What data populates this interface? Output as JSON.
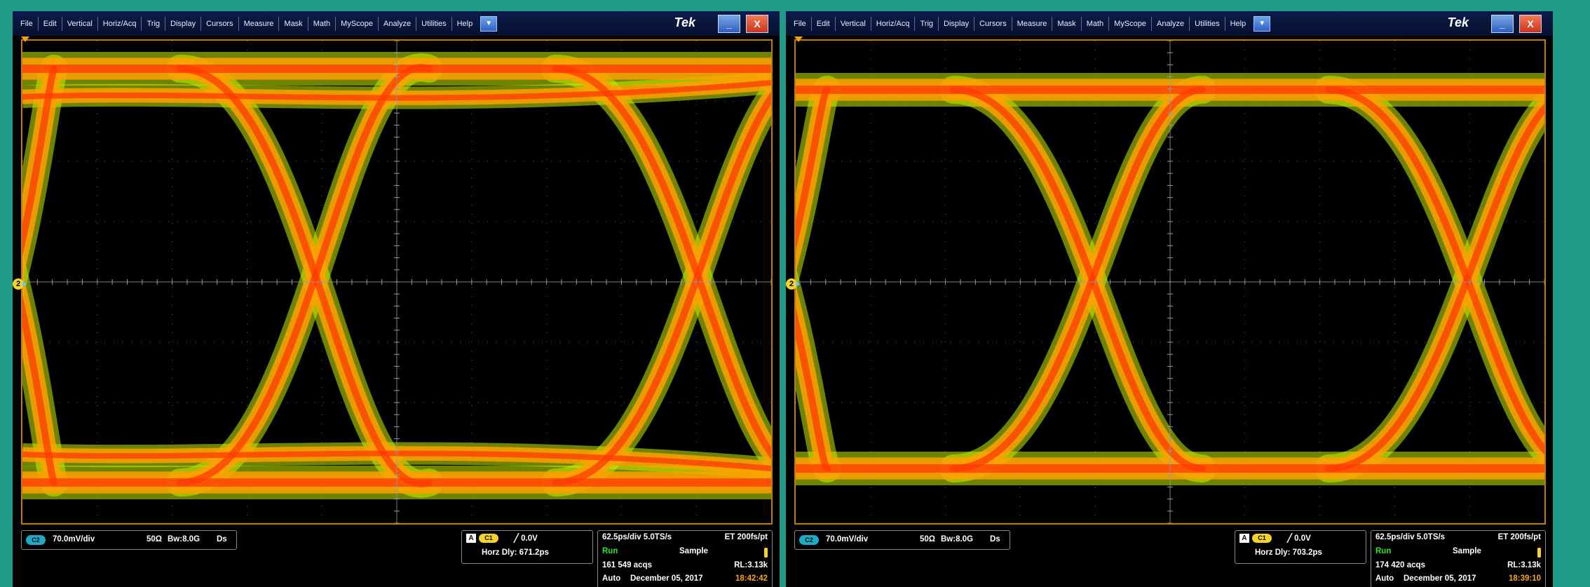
{
  "menu": {
    "items": [
      "File",
      "Edit",
      "Vertical",
      "Horiz/Acq",
      "Trig",
      "Display",
      "Cursors",
      "Measure",
      "Mask",
      "Math",
      "MyScope",
      "Analyze",
      "Utilities",
      "Help"
    ],
    "dropdown_icon": "chevron-down-icon",
    "brand": "Tek",
    "minimize_label": "_",
    "close_label": "X"
  },
  "colors": {
    "background": "#1f9b86",
    "menubar": "#0c1c4c",
    "graticule_border": "#c07a10",
    "eye_hot": "#ff3a00",
    "eye_warm": "#ffa000",
    "eye_cool": "#c8f000",
    "run_green": "#2ee52e",
    "time_orange": "#f5a623"
  },
  "scopes": [
    {
      "channel_marker": "2",
      "channel": {
        "badge": "C2",
        "scale": "70.0mV/div",
        "impedance": "50Ω",
        "bandwidth": "Bw:8.0G",
        "mode": "Ds"
      },
      "trigger": {
        "source_letter": "A",
        "source": "C1",
        "slope": "╱",
        "level": "0.0V",
        "horz_dly": "Horz Dly:   671.2ps"
      },
      "acquisition": {
        "timebase": "62.5ps/div 5.0TS/s",
        "et": "ET  200fs/pt",
        "state": "Run",
        "mode": "Sample",
        "acqs": "161 549 acqs",
        "rl": "RL:3.13k",
        "trigger_mode": "Auto",
        "date": "December 05, 2017",
        "time": "18:42:42"
      }
    },
    {
      "channel_marker": "2",
      "channel": {
        "badge": "C2",
        "scale": "70.0mV/div",
        "impedance": "50Ω",
        "bandwidth": "Bw:8.0G",
        "mode": "Ds"
      },
      "trigger": {
        "source_letter": "A",
        "source": "C1",
        "slope": "╱",
        "level": "0.0V",
        "horz_dly": "Horz Dly:   703.2ps"
      },
      "acquisition": {
        "timebase": "62.5ps/div 5.0TS/s",
        "et": "ET  200fs/pt",
        "state": "Run",
        "mode": "Sample",
        "acqs": "174 420 acqs",
        "rl": "RL:3.13k",
        "trigger_mode": "Auto",
        "date": "December 05, 2017",
        "time": "18:39:10"
      }
    }
  ]
}
